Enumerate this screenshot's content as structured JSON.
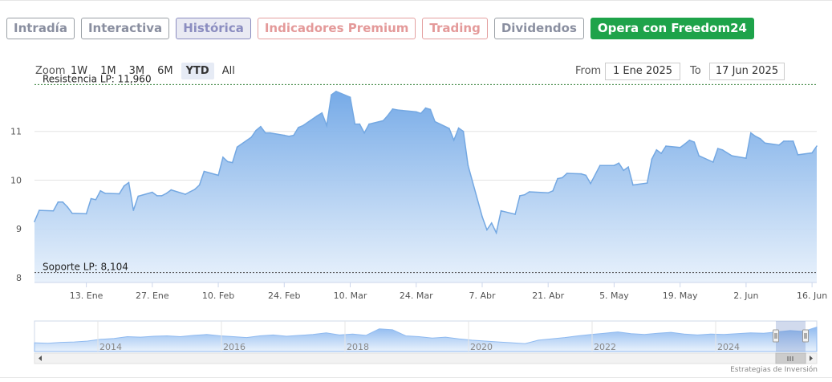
{
  "tabs": [
    {
      "label": "Intradía",
      "style": "normal"
    },
    {
      "label": "Interactiva",
      "style": "normal"
    },
    {
      "label": "Histórica",
      "style": "active"
    },
    {
      "label": "Indicadores Premium",
      "style": "premium"
    },
    {
      "label": "Trading",
      "style": "trading"
    },
    {
      "label": "Dividendos",
      "style": "dividends"
    },
    {
      "label": "Opera con Freedom24",
      "style": "freedom"
    }
  ],
  "zoom": {
    "label": "Zoom",
    "options": [
      "1W",
      "1M",
      "3M",
      "6M",
      "YTD",
      "All"
    ],
    "selected": "YTD"
  },
  "range": {
    "from_label": "From",
    "from_value": "1 Ene 2025",
    "to_label": "To",
    "to_value": "17 Jun 2025"
  },
  "credits": "Estrategias de Inversión",
  "colors": {
    "area": "#7fb0e8",
    "line": "#74a8e2",
    "freedom": "#1ea34a"
  },
  "chart_data": {
    "type": "area",
    "x": [
      "2025-01-02",
      "2025-01-03",
      "2025-01-06",
      "2025-01-07",
      "2025-01-08",
      "2025-01-09",
      "2025-01-10",
      "2025-01-13",
      "2025-01-14",
      "2025-01-15",
      "2025-01-16",
      "2025-01-17",
      "2025-01-20",
      "2025-01-21",
      "2025-01-22",
      "2025-01-23",
      "2025-01-24",
      "2025-01-27",
      "2025-01-28",
      "2025-01-29",
      "2025-01-30",
      "2025-01-31",
      "2025-02-03",
      "2025-02-04",
      "2025-02-05",
      "2025-02-06",
      "2025-02-07",
      "2025-02-10",
      "2025-02-11",
      "2025-02-12",
      "2025-02-13",
      "2025-02-14",
      "2025-02-17",
      "2025-02-18",
      "2025-02-19",
      "2025-02-20",
      "2025-02-21",
      "2025-02-24",
      "2025-02-25",
      "2025-02-26",
      "2025-02-27",
      "2025-02-28",
      "2025-03-03",
      "2025-03-04",
      "2025-03-05",
      "2025-03-06",
      "2025-03-07",
      "2025-03-10",
      "2025-03-11",
      "2025-03-12",
      "2025-03-13",
      "2025-03-14",
      "2025-03-17",
      "2025-03-18",
      "2025-03-19",
      "2025-03-20",
      "2025-03-21",
      "2025-03-24",
      "2025-03-25",
      "2025-03-26",
      "2025-03-27",
      "2025-03-28",
      "2025-03-31",
      "2025-04-01",
      "2025-04-02",
      "2025-04-03",
      "2025-04-04",
      "2025-04-07",
      "2025-04-08",
      "2025-04-09",
      "2025-04-10",
      "2025-04-11",
      "2025-04-14",
      "2025-04-15",
      "2025-04-16",
      "2025-04-17",
      "2025-04-21",
      "2025-04-22",
      "2025-04-23",
      "2025-04-24",
      "2025-04-25",
      "2025-04-28",
      "2025-04-29",
      "2025-04-30",
      "2025-05-02",
      "2025-05-05",
      "2025-05-06",
      "2025-05-07",
      "2025-05-08",
      "2025-05-09",
      "2025-05-12",
      "2025-05-13",
      "2025-05-14",
      "2025-05-15",
      "2025-05-16",
      "2025-05-19",
      "2025-05-20",
      "2025-05-21",
      "2025-05-22",
      "2025-05-23",
      "2025-05-26",
      "2025-05-27",
      "2025-05-28",
      "2025-05-29",
      "2025-05-30",
      "2025-06-02",
      "2025-06-03",
      "2025-06-04",
      "2025-06-05",
      "2025-06-06",
      "2025-06-09",
      "2025-06-10",
      "2025-06-11",
      "2025-06-12",
      "2025-06-13",
      "2025-06-16",
      "2025-06-17"
    ],
    "values": [
      9.15,
      9.38,
      9.37,
      9.55,
      9.55,
      9.45,
      9.32,
      9.31,
      9.62,
      9.6,
      9.78,
      9.73,
      9.72,
      9.88,
      9.95,
      9.38,
      9.67,
      9.75,
      9.68,
      9.68,
      9.73,
      9.8,
      9.71,
      9.76,
      9.81,
      9.9,
      10.18,
      10.1,
      10.47,
      10.38,
      10.36,
      10.68,
      10.88,
      11.02,
      11.1,
      10.97,
      10.97,
      10.92,
      10.9,
      10.92,
      11.08,
      11.12,
      11.32,
      11.38,
      11.12,
      11.75,
      11.82,
      11.7,
      11.15,
      11.15,
      10.97,
      11.15,
      11.22,
      11.33,
      11.46,
      11.44,
      11.43,
      11.4,
      11.37,
      11.48,
      11.45,
      11.2,
      11.06,
      10.82,
      11.07,
      11,
      10.3,
      9.25,
      8.98,
      9.12,
      8.92,
      9.37,
      9.3,
      9.68,
      9.7,
      9.76,
      9.74,
      9.78,
      10.03,
      10.05,
      10.14,
      10.13,
      10.1,
      9.93,
      10.3,
      10.3,
      10.35,
      10.2,
      10.27,
      9.9,
      9.94,
      10.43,
      10.62,
      10.55,
      10.7,
      10.67,
      10.74,
      10.82,
      10.78,
      10.5,
      10.37,
      10.65,
      10.62,
      10.56,
      10.5,
      10.45,
      10.97,
      10.9,
      10.85,
      10.76,
      10.72,
      10.8,
      10.8,
      10.8,
      10.52,
      10.56,
      10.7
    ],
    "y_ticks": [
      "8",
      "9",
      "10",
      "11"
    ],
    "ylim": [
      7.9,
      12.0
    ],
    "x_tick_labels": [
      {
        "date": "2025-01-13",
        "label": "13. Ene"
      },
      {
        "date": "2025-01-27",
        "label": "27. Ene"
      },
      {
        "date": "2025-02-10",
        "label": "10. Feb"
      },
      {
        "date": "2025-02-24",
        "label": "24. Feb"
      },
      {
        "date": "2025-03-10",
        "label": "10. Mar"
      },
      {
        "date": "2025-03-24",
        "label": "24. Mar"
      },
      {
        "date": "2025-04-07",
        "label": "7. Abr"
      },
      {
        "date": "2025-04-21",
        "label": "21. Abr"
      },
      {
        "date": "2025-05-05",
        "label": "5. May"
      },
      {
        "date": "2025-05-19",
        "label": "19. May"
      },
      {
        "date": "2025-06-02",
        "label": "2. Jun"
      },
      {
        "date": "2025-06-16",
        "label": "16. Jun"
      }
    ],
    "resistance": {
      "label": "Resistencia LP: 11,960",
      "value": 11.96
    },
    "support": {
      "label": "Soporte LP: 8,104",
      "value": 8.104
    },
    "grid": true,
    "navigator": {
      "years": [
        "2014",
        "2016",
        "2018",
        "2020",
        "2022",
        "2024"
      ],
      "values": [
        2.0,
        1.9,
        2.1,
        2.2,
        2.4,
        2.8,
        3.0,
        3.4,
        3.3,
        3.5,
        3.6,
        3.4,
        3.7,
        3.9,
        3.6,
        3.4,
        3.2,
        3.6,
        3.8,
        3.5,
        3.7,
        3.9,
        4.3,
        3.8,
        4.0,
        3.7,
        5.2,
        5.0,
        3.6,
        3.4,
        3.1,
        3.3,
        2.9,
        2.6,
        2.4,
        2.2,
        2.0,
        1.8,
        2.6,
        2.9,
        3.2,
        3.6,
        3.9,
        4.2,
        4.5,
        4.1,
        3.9,
        4.2,
        4.4,
        4.0,
        3.8,
        4.0,
        3.9,
        4.1,
        4.3,
        4.2,
        4.5,
        4.8,
        4.6,
        5.6
      ]
    }
  }
}
